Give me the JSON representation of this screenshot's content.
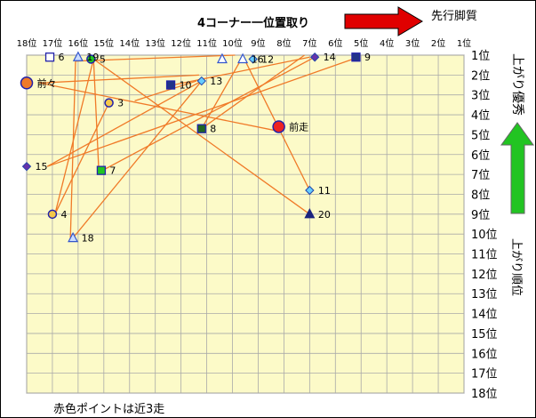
{
  "chart_data": {
    "type": "scatter",
    "title": "4コーナー一位置取り",
    "top_right_label": "先行脚質",
    "right_upper_label": "上がり優秀",
    "right_lower_label": "上がり順位",
    "footer_note": "赤色ポイントは近3走",
    "x_ticks": [
      "18位",
      "17位",
      "16位",
      "15位",
      "14位",
      "13位",
      "12位",
      "11位",
      "10位",
      "9位",
      "8位",
      "7位",
      "6位",
      "5位",
      "4位",
      "3位",
      "2位",
      "1位"
    ],
    "y_ticks": [
      "1位",
      "2位",
      "3位",
      "4位",
      "5位",
      "6位",
      "7位",
      "8位",
      "9位",
      "10位",
      "11位",
      "12位",
      "13位",
      "14位",
      "15位",
      "16位",
      "17位",
      "18位"
    ],
    "x_axis": "4コーナー位置取り (18位 → 1位)",
    "y_axis": "上がり順位 (1位 → 18位)",
    "xlim": [
      18,
      1
    ],
    "ylim": [
      1,
      18
    ],
    "arrow_colors": {
      "red": "#e00000",
      "green": "#22c422"
    },
    "bg_color": "#fcfac8",
    "line_color": "#f07a28",
    "points": [
      {
        "label": "前走",
        "x": 8.2,
        "y": 4.6,
        "marker": "circle",
        "fill": "#ee2222",
        "stroke": "#2222aa",
        "size": "large"
      },
      {
        "label": "前々",
        "x": 18,
        "y": 2.4,
        "marker": "circle",
        "fill": "#f07a28",
        "stroke": "#2222aa",
        "size": "large"
      },
      {
        "label": "3",
        "x": 14.8,
        "y": 3.4,
        "marker": "circle",
        "fill": "#f4c84a",
        "stroke": "#2222aa",
        "size": "small"
      },
      {
        "label": "4",
        "x": 17,
        "y": 9.0,
        "marker": "circle",
        "fill": "#f4c84a",
        "stroke": "#2222aa",
        "size": "small"
      },
      {
        "label": "5",
        "x": 15.5,
        "y": 1.2,
        "marker": "circle",
        "fill": "#22c422",
        "stroke": "#2222aa",
        "size": "small"
      },
      {
        "label": "6",
        "x": 17.1,
        "y": 1.1,
        "marker": "square",
        "fill": "#ffffff",
        "stroke": "#2222aa",
        "size": "small"
      },
      {
        "label": "7",
        "x": 15.1,
        "y": 6.8,
        "marker": "square",
        "fill": "#22c422",
        "stroke": "#2222aa",
        "size": "small"
      },
      {
        "label": "8",
        "x": 11.2,
        "y": 4.7,
        "marker": "square",
        "fill": "#226622",
        "stroke": "#2222aa",
        "size": "small"
      },
      {
        "label": "9",
        "x": 5.2,
        "y": 1.1,
        "marker": "square",
        "fill": "#223388",
        "stroke": "#2222aa",
        "size": "small"
      },
      {
        "label": "10",
        "x": 12.4,
        "y": 2.5,
        "marker": "square",
        "fill": "#223388",
        "stroke": "#2222aa",
        "size": "small"
      },
      {
        "label": "11",
        "x": 7.0,
        "y": 7.8,
        "marker": "diamond",
        "fill": "#66ccff",
        "stroke": "#2244aa",
        "size": "small"
      },
      {
        "label": "12",
        "x": 9.2,
        "y": 1.2,
        "marker": "diamond",
        "fill": "#66ccff",
        "stroke": "#2244aa",
        "size": "small"
      },
      {
        "label": "13",
        "x": 11.2,
        "y": 2.3,
        "marker": "diamond",
        "fill": "#66ccff",
        "stroke": "#2244aa",
        "size": "small"
      },
      {
        "label": "14",
        "x": 6.8,
        "y": 1.1,
        "marker": "diamond",
        "fill": "#6633aa",
        "stroke": "#2244aa",
        "size": "small"
      },
      {
        "label": "15",
        "x": 18,
        "y": 6.6,
        "marker": "diamond",
        "fill": "#6633aa",
        "stroke": "#2244aa",
        "size": "small"
      },
      {
        "label": "16",
        "x": 9.6,
        "y": 1.2,
        "marker": "triangle",
        "fill": "#ffffff",
        "stroke": "#3355cc",
        "size": "small"
      },
      {
        "label": "18",
        "x": 16.2,
        "y": 10.2,
        "marker": "triangle",
        "fill": "#ccddff",
        "stroke": "#3355cc",
        "size": "small"
      },
      {
        "label": "19",
        "x": 16.0,
        "y": 1.1,
        "marker": "triangle",
        "fill": "#ccddff",
        "stroke": "#3355cc",
        "size": "small"
      },
      {
        "label": "20",
        "x": 7.0,
        "y": 9.0,
        "marker": "triangle",
        "fill": "#1a237e",
        "stroke": "#1a237e",
        "size": "small"
      },
      {
        "label": "",
        "x": 10.4,
        "y": 1.2,
        "marker": "triangle",
        "fill": "#ffffff",
        "stroke": "#3355cc",
        "size": "small"
      }
    ],
    "lines": [
      [
        17.5,
        2.4,
        8.3,
        4.8
      ],
      [
        17.5,
        2.4,
        11.3,
        2.0
      ],
      [
        15.4,
        1.2,
        16.9,
        9.0
      ],
      [
        15.4,
        1.2,
        7.0,
        9.0
      ],
      [
        15.4,
        1.2,
        15.2,
        6.7
      ],
      [
        16.1,
        1.3,
        16.3,
        10.2
      ],
      [
        16.1,
        1.3,
        9.9,
        1.0
      ],
      [
        17.2,
        6.6,
        5.1,
        1.1
      ],
      [
        17.2,
        6.6,
        11.2,
        2.3
      ],
      [
        16.9,
        9.0,
        14.8,
        3.4
      ],
      [
        15.2,
        6.9,
        6.8,
        1.1
      ],
      [
        13.8,
        3.3,
        11.4,
        2.3
      ],
      [
        11.2,
        4.7,
        9.7,
        1.3
      ],
      [
        11.2,
        4.7,
        7.2,
        1.0
      ],
      [
        16.2,
        10.2,
        11.2,
        2.3
      ],
      [
        9.5,
        1.3,
        7.0,
        7.8
      ],
      [
        12.3,
        2.5,
        7.0,
        1.1
      ]
    ]
  }
}
